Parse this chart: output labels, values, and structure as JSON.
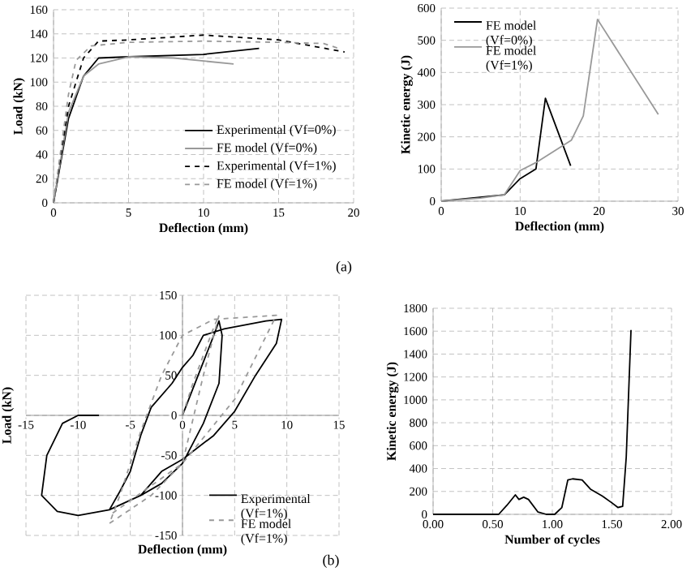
{
  "chart_data": [
    {
      "type": "line",
      "xlabel": "Deflection (mm)",
      "ylabel": "Load (kN)",
      "xlim": [
        0,
        20
      ],
      "ylim": [
        0,
        160
      ],
      "xticks": [
        0,
        5,
        10,
        15,
        20
      ],
      "yticks": [
        0,
        20,
        40,
        60,
        80,
        100,
        120,
        140,
        160
      ],
      "grid": true,
      "legend": "bottom right",
      "annotations": [
        "(a)"
      ],
      "series": [
        {
          "name": "Experimental (Vf=0%)",
          "color": "#000000",
          "line_style": "solid",
          "x": [
            0,
            1,
            2,
            3,
            5,
            10,
            13.7
          ],
          "values": [
            0,
            70,
            105,
            120,
            121,
            123,
            128
          ]
        },
        {
          "name": "FE model (Vf=0%)",
          "color": "#999999",
          "line_style": "solid",
          "x": [
            0,
            1,
            2,
            3,
            5,
            8,
            12
          ],
          "values": [
            0,
            75,
            105,
            115,
            121,
            120,
            115
          ]
        },
        {
          "name": "Experimental (Vf=1%)",
          "color": "#000000",
          "line_style": "dashed",
          "x": [
            0,
            1,
            2,
            3,
            5,
            10,
            15,
            19.4
          ],
          "values": [
            0,
            80,
            120,
            134,
            135,
            139,
            135,
            125
          ]
        },
        {
          "name": "FE model (Vf=1%)",
          "color": "#999999",
          "line_style": "dashed",
          "x": [
            0,
            1,
            1.5,
            2.5,
            5,
            10,
            15,
            18,
            19
          ],
          "values": [
            0,
            90,
            118,
            130,
            133,
            134,
            133,
            132,
            128
          ]
        }
      ]
    },
    {
      "type": "line",
      "xlabel": "Deflection (mm)",
      "ylabel": "Kinetic energy (J)",
      "xlim": [
        0,
        30
      ],
      "ylim": [
        0,
        600
      ],
      "xticks": [
        0,
        10,
        20,
        30
      ],
      "yticks": [
        0,
        100,
        200,
        300,
        400,
        500,
        600
      ],
      "grid": true,
      "legend": "top left",
      "series": [
        {
          "name": "FE model (Vf=0%)",
          "color": "#000000",
          "line_style": "solid",
          "x": [
            0,
            8,
            10,
            12,
            13.2,
            16.4
          ],
          "values": [
            0,
            20,
            70,
            100,
            320,
            110
          ]
        },
        {
          "name": "FE model (Vf=1%)",
          "color": "#999999",
          "line_style": "solid",
          "x": [
            0,
            5,
            8,
            10,
            12,
            16.5,
            18,
            19.8,
            27.5
          ],
          "values": [
            0,
            10,
            20,
            95,
            120,
            190,
            265,
            565,
            270
          ]
        }
      ]
    },
    {
      "type": "line",
      "xlabel": "Deflection (mm)",
      "ylabel": "Load (kN)",
      "xlim": [
        -15,
        15
      ],
      "ylim": [
        -150,
        150
      ],
      "xticks": [
        -15,
        -10,
        -5,
        0,
        5,
        10,
        15
      ],
      "yticks": [
        -150,
        -100,
        -50,
        0,
        50,
        100,
        150
      ],
      "grid": true,
      "legend": "bottom right",
      "annotations": [
        "(b)"
      ],
      "series": [
        {
          "name": "Experimental (Vf=1%)",
          "color": "#000000",
          "line_style": "solid",
          "x": [
            0,
            1.5,
            3,
            3.5,
            3.8,
            3.5,
            2,
            0,
            -2,
            -4,
            -7,
            -6,
            -5,
            -4,
            -3,
            -1,
            0,
            1,
            2,
            4,
            8,
            9.5,
            9,
            7,
            5,
            3,
            0,
            -2,
            -4,
            -7,
            -10,
            -12,
            -13.5,
            -13,
            -11.5,
            -10,
            -8
          ],
          "values": [
            0,
            50,
            100,
            118,
            100,
            40,
            -10,
            -60,
            -85,
            -100,
            -118,
            -95,
            -70,
            -25,
            10,
            40,
            60,
            75,
            100,
            108,
            118,
            120,
            90,
            50,
            5,
            -25,
            -55,
            -70,
            -100,
            -118,
            -125,
            -120,
            -100,
            -50,
            -10,
            0,
            0
          ]
        },
        {
          "name": "FE model (Vf=1%)",
          "color": "#999999",
          "line_style": "dashed",
          "x": [
            0,
            1,
            3,
            3.5,
            2,
            0,
            -3,
            -7,
            -6,
            -4,
            -2,
            0,
            3,
            9,
            5,
            0,
            -7
          ],
          "values": [
            0,
            40,
            110,
            125,
            50,
            -60,
            -100,
            -135,
            -100,
            -20,
            50,
            100,
            120,
            125,
            20,
            -60,
            -125
          ]
        }
      ]
    },
    {
      "type": "line",
      "xlabel": "Number of cycles",
      "ylabel": "Kinetic energy (J)",
      "xlim": [
        0,
        2
      ],
      "ylim": [
        0,
        1800
      ],
      "xticks": [
        {
          "value": 0,
          "label": "0.00"
        },
        {
          "value": 0.5,
          "label": "0.50"
        },
        {
          "value": 1,
          "label": "1.00"
        },
        {
          "value": 1.5,
          "label": "1.50"
        },
        {
          "value": 2,
          "label": "2.00"
        }
      ],
      "yticks": [
        0,
        200,
        400,
        600,
        800,
        1000,
        1200,
        1400,
        1600,
        1800
      ],
      "grid": true,
      "series": [
        {
          "color": "#000000",
          "line_style": "solid",
          "x": [
            0,
            0.5,
            0.55,
            0.62,
            0.69,
            0.72,
            0.76,
            0.8,
            0.88,
            0.95,
            1.02,
            1.08,
            1.13,
            1.17,
            1.25,
            1.32,
            1.42,
            1.5,
            1.55,
            1.59,
            1.62,
            1.66
          ],
          "values": [
            0,
            0,
            0,
            80,
            170,
            130,
            150,
            130,
            20,
            0,
            0,
            60,
            300,
            310,
            300,
            220,
            160,
            100,
            60,
            70,
            500,
            1610
          ]
        }
      ]
    }
  ]
}
